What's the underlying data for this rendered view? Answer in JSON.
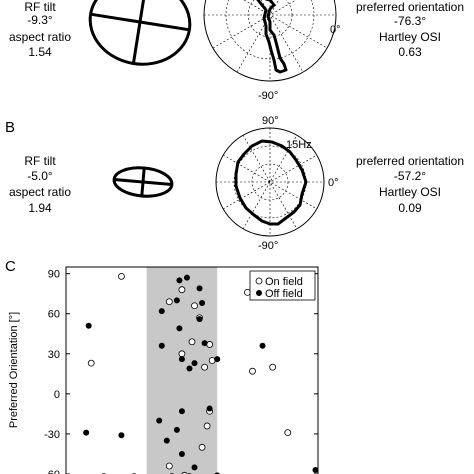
{
  "panel_labels": {
    "b": "B",
    "c": "C"
  },
  "panel_a": {
    "rf_tilt_label": "RF tilt",
    "rf_tilt_value": "-9.3°",
    "aspect_label": "aspect ratio",
    "aspect_value": "1.54",
    "pref_label": "preferred orientation",
    "pref_value": "-76.3°",
    "osi_label": "Hartley OSI",
    "osi_value": "0.63",
    "polar_right": "0°",
    "polar_bottom": "-90°"
  },
  "panel_b": {
    "rf_tilt_label": "RF tilt",
    "rf_tilt_value": "-5.0°",
    "aspect_label": "aspect ratio",
    "aspect_value": "1.94",
    "pref_label": "preferred orientation",
    "pref_value": "-57.2°",
    "osi_label": "Hartley OSI",
    "osi_value": "0.09",
    "polar_top": "90°",
    "polar_right": "0°",
    "polar_bottom": "-90°",
    "rate_label": "15Hz"
  },
  "chart_data": {
    "type": "scatter",
    "title": "",
    "xlabel": "",
    "ylabel": "Preferred Orientation [°]",
    "ylim": [
      -60,
      95
    ],
    "xlim": [
      0,
      100
    ],
    "yticks": [
      90,
      60,
      30,
      0,
      -30,
      -60
    ],
    "ytick_labels": [
      "90",
      "60",
      "30",
      "0",
      "-30",
      "-60"
    ],
    "shaded_band": {
      "x0": 32,
      "x1": 60,
      "color": "#c8c8c8"
    },
    "legend_position": "top-right",
    "series": [
      {
        "name": "On field",
        "marker": "open-circle",
        "points": [
          {
            "x": 22,
            "y": 88
          },
          {
            "x": 41,
            "y": 69
          },
          {
            "x": 46,
            "y": 78
          },
          {
            "x": 51,
            "y": 66
          },
          {
            "x": 53,
            "y": 57
          },
          {
            "x": 50,
            "y": 39
          },
          {
            "x": 57,
            "y": 37
          },
          {
            "x": 46,
            "y": 30
          },
          {
            "x": 10,
            "y": 23
          },
          {
            "x": 55,
            "y": 20
          },
          {
            "x": 58,
            "y": 25
          },
          {
            "x": 72,
            "y": 76
          },
          {
            "x": 74,
            "y": 17
          },
          {
            "x": 82,
            "y": 20
          },
          {
            "x": 57,
            "y": -13
          },
          {
            "x": 56,
            "y": -24
          },
          {
            "x": 41,
            "y": -54
          },
          {
            "x": 54,
            "y": -40
          },
          {
            "x": 88,
            "y": -29
          },
          {
            "x": 47,
            "y": -61
          },
          {
            "x": 15,
            "y": -62
          },
          {
            "x": 27,
            "y": -62
          },
          {
            "x": 42,
            "y": -62
          },
          {
            "x": 49,
            "y": -62
          }
        ]
      },
      {
        "name": "Off field",
        "marker": "filled-circle",
        "points": [
          {
            "x": 48,
            "y": 87
          },
          {
            "x": 45,
            "y": 85
          },
          {
            "x": 44,
            "y": 70
          },
          {
            "x": 53,
            "y": 79
          },
          {
            "x": 54,
            "y": 68
          },
          {
            "x": 38,
            "y": 62
          },
          {
            "x": 53,
            "y": 56
          },
          {
            "x": 9,
            "y": 51
          },
          {
            "x": 45,
            "y": 49
          },
          {
            "x": 55,
            "y": 38
          },
          {
            "x": 38,
            "y": 36
          },
          {
            "x": 46,
            "y": 26
          },
          {
            "x": 51,
            "y": 23
          },
          {
            "x": 49,
            "y": 19
          },
          {
            "x": 60,
            "y": 26
          },
          {
            "x": 76,
            "y": 77
          },
          {
            "x": 78,
            "y": 36
          },
          {
            "x": 57,
            "y": -11
          },
          {
            "x": 46,
            "y": -13
          },
          {
            "x": 37,
            "y": -20
          },
          {
            "x": 44,
            "y": -27
          },
          {
            "x": 8,
            "y": -29
          },
          {
            "x": 22,
            "y": -31
          },
          {
            "x": 40,
            "y": -35
          },
          {
            "x": 46,
            "y": -45
          },
          {
            "x": 51,
            "y": -55
          },
          {
            "x": 36,
            "y": -63
          },
          {
            "x": 50,
            "y": -63
          },
          {
            "x": 60,
            "y": -61
          },
          {
            "x": 99,
            "y": -57
          }
        ]
      }
    ]
  }
}
